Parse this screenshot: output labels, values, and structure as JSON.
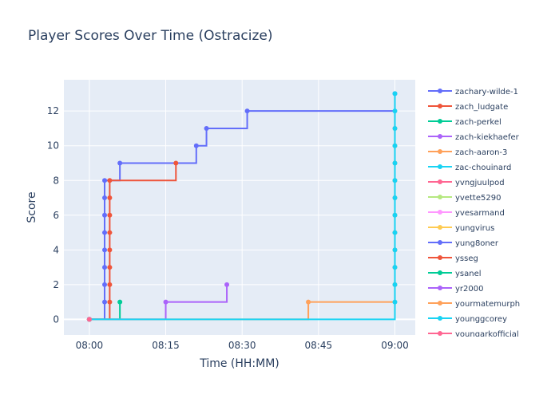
{
  "chart_data": {
    "type": "line",
    "line_shape": "step",
    "title": "Player Scores Over Time (Ostracize)",
    "xlabel": "Time (HH:MM)",
    "ylabel": "Score",
    "x_unit": "HH:MM",
    "xlim": [
      "07:55",
      "09:04"
    ],
    "ylim": [
      -0.9,
      13.8
    ],
    "x_ticks": [
      "08:00",
      "08:15",
      "08:30",
      "08:45",
      "09:00"
    ],
    "y_ticks": [
      0,
      2,
      4,
      6,
      8,
      10,
      12
    ],
    "grid": true,
    "plot_background": "#E5ECF6",
    "legend_position": "right",
    "legend_scrollable": true,
    "series": [
      {
        "name": "zachary-wilde-1",
        "color": "#636EFA",
        "x": [
          "08:00",
          "08:03",
          "08:03",
          "08:03",
          "08:03",
          "08:03",
          "08:03",
          "08:03",
          "08:03",
          "08:06",
          "08:21",
          "08:23",
          "08:31",
          "09:00"
        ],
        "y": [
          0,
          1,
          2,
          3,
          4,
          5,
          6,
          7,
          8,
          9,
          10,
          11,
          12,
          13
        ]
      },
      {
        "name": "zach_ludgate",
        "color": "#EF553B",
        "x": [
          "08:00",
          "08:04",
          "08:04",
          "08:04",
          "08:04",
          "08:04",
          "08:04",
          "08:04",
          "08:04",
          "08:17"
        ],
        "y": [
          0,
          1,
          2,
          3,
          4,
          5,
          6,
          7,
          8,
          9
        ]
      },
      {
        "name": "zach-perkel",
        "color": "#00CC96",
        "x": [
          "08:00",
          "08:06"
        ],
        "y": [
          0,
          1
        ]
      },
      {
        "name": "zach-kiekhaefer",
        "color": "#AB63FA",
        "x": [
          "08:00",
          "08:15",
          "08:27"
        ],
        "y": [
          0,
          1,
          2
        ]
      },
      {
        "name": "zach-aaron-3",
        "color": "#FFA15A",
        "x": [
          "08:00",
          "08:43",
          "09:00",
          "09:00",
          "09:00",
          "09:00",
          "09:00",
          "09:00",
          "09:00",
          "09:00",
          "09:00",
          "09:00"
        ],
        "y": [
          0,
          1,
          2,
          3,
          4,
          5,
          6,
          7,
          8,
          9,
          10,
          11
        ]
      },
      {
        "name": "zac-chouinard",
        "color": "#19D3F3",
        "x": [
          "08:00",
          "09:00",
          "09:00",
          "09:00",
          "09:00",
          "09:00",
          "09:00",
          "09:00",
          "09:00",
          "09:00",
          "09:00",
          "09:00",
          "09:00",
          "09:00"
        ],
        "y": [
          0,
          1,
          2,
          3,
          4,
          5,
          6,
          7,
          8,
          9,
          10,
          11,
          12,
          13
        ]
      },
      {
        "name": "yvngjuulpod",
        "color": "#FF6692",
        "x": [
          "08:00"
        ],
        "y": [
          0
        ]
      },
      {
        "name": "yvette5290",
        "color": "#B6E880",
        "x": [
          "08:00"
        ],
        "y": [
          0
        ]
      },
      {
        "name": "yvesarmand",
        "color": "#FF97FF",
        "x": [
          "08:00"
        ],
        "y": [
          0
        ]
      },
      {
        "name": "yungvirus",
        "color": "#FECB52",
        "x": [
          "08:00"
        ],
        "y": [
          0
        ]
      },
      {
        "name": "yung8oner",
        "color": "#636EFA",
        "x": [
          "08:00"
        ],
        "y": [
          0
        ]
      },
      {
        "name": "ysseg",
        "color": "#EF553B",
        "x": [
          "08:00"
        ],
        "y": [
          0
        ]
      },
      {
        "name": "ysanel",
        "color": "#00CC96",
        "x": [
          "08:00"
        ],
        "y": [
          0
        ]
      },
      {
        "name": "yr2000",
        "color": "#AB63FA",
        "x": [
          "08:00"
        ],
        "y": [
          0
        ]
      },
      {
        "name": "yourmatemurph",
        "color": "#FFA15A",
        "x": [
          "08:00"
        ],
        "y": [
          0
        ]
      },
      {
        "name": "younggcorey",
        "color": "#19D3F3",
        "x": [
          "08:00"
        ],
        "y": [
          0
        ]
      },
      {
        "name": "youngarkofficial",
        "color": "#FF6692",
        "x": [
          "08:00"
        ],
        "y": [
          0
        ]
      }
    ]
  }
}
